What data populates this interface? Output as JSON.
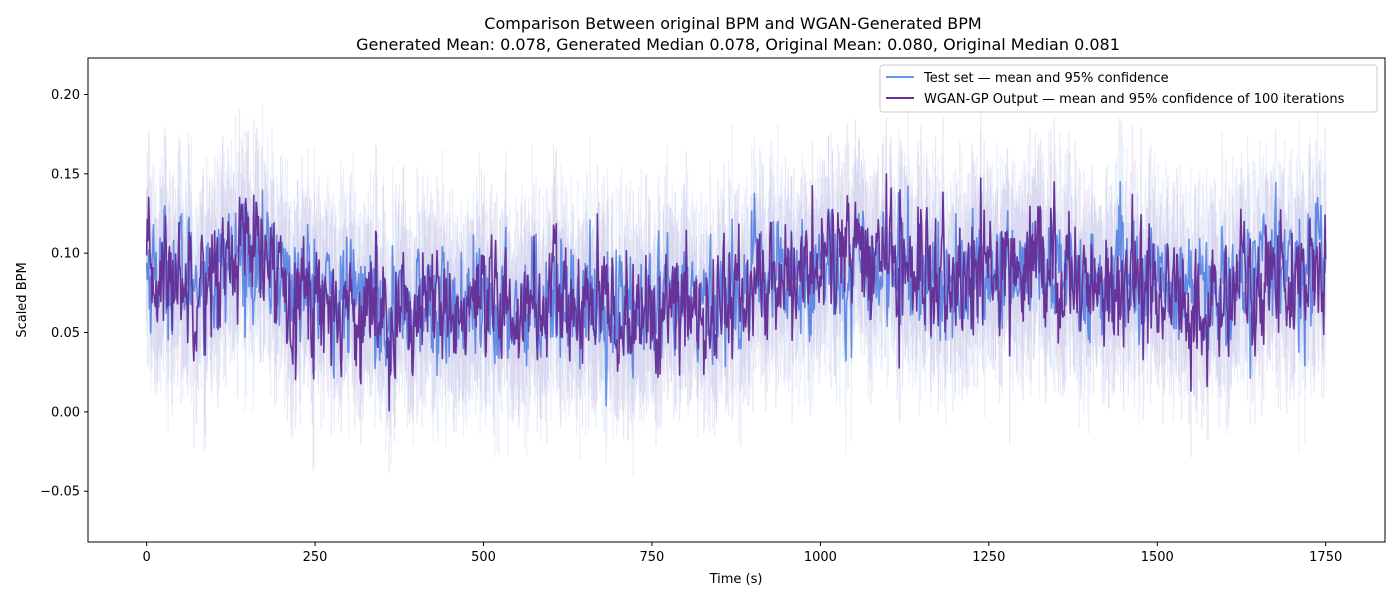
{
  "chart_data": {
    "type": "line",
    "title": "Comparison Between original BPM and WGAN-Generated BPM",
    "subtitle": "Generated Mean: 0.078, Generated Median 0.078, Original Mean: 0.080, Original Median 0.081",
    "xlabel": "Time (s)",
    "ylabel": "Scaled BPM",
    "xlim": [
      -87,
      1838
    ],
    "ylim": [
      -0.082,
      0.223
    ],
    "xticks": [
      0,
      250,
      500,
      750,
      1000,
      1250,
      1500,
      1750
    ],
    "xtick_labels": [
      "0",
      "250",
      "500",
      "750",
      "1000",
      "1250",
      "1500",
      "1750"
    ],
    "yticks": [
      -0.05,
      0.0,
      0.05,
      0.1,
      0.15,
      0.2
    ],
    "ytick_labels": [
      "−0.05",
      "0.00",
      "0.05",
      "0.10",
      "0.15",
      "0.20"
    ],
    "grid": false,
    "legend_position": "top-right",
    "colors": {
      "test": "#6495ED",
      "wgan": "#663399"
    },
    "series_note_points": "values at 1-second resolution, x = 0..1750",
    "series": [
      {
        "name": "Test set — mean and 95% confidence",
        "color": "#6495ED",
        "x_start": 0,
        "x_end": 1750,
        "n_points": 1751,
        "mean_level": 0.08,
        "ci_half_width": 0.045,
        "anchors_x": [
          0,
          100,
          140,
          250,
          300,
          350,
          500,
          600,
          700,
          755,
          830,
          900,
          1000,
          1100,
          1200,
          1300,
          1400,
          1500,
          1560,
          1650,
          1750
        ],
        "anchors_y": [
          0.09,
          0.085,
          0.1,
          0.075,
          0.07,
          0.07,
          0.06,
          0.075,
          0.065,
          0.06,
          0.07,
          0.08,
          0.09,
          0.095,
          0.08,
          0.095,
          0.08,
          0.085,
          0.07,
          0.09,
          0.095
        ],
        "values": []
      },
      {
        "name": "WGAN-GP Output — mean and 95% confidence of 100 iterations",
        "color": "#663399",
        "x_start": 0,
        "x_end": 1750,
        "n_points": 1751,
        "mean_level": 0.078,
        "ci_half_width": 0.04,
        "anchors_x": [
          0,
          100,
          140,
          250,
          300,
          350,
          500,
          600,
          700,
          755,
          830,
          900,
          1000,
          1100,
          1200,
          1300,
          1400,
          1500,
          1560,
          1650,
          1750
        ],
        "anchors_y": [
          0.085,
          0.085,
          0.105,
          0.07,
          0.065,
          0.065,
          0.06,
          0.07,
          0.06,
          0.06,
          0.065,
          0.075,
          0.095,
          0.1,
          0.075,
          0.1,
          0.08,
          0.08,
          0.06,
          0.085,
          0.09
        ],
        "values": []
      }
    ]
  }
}
